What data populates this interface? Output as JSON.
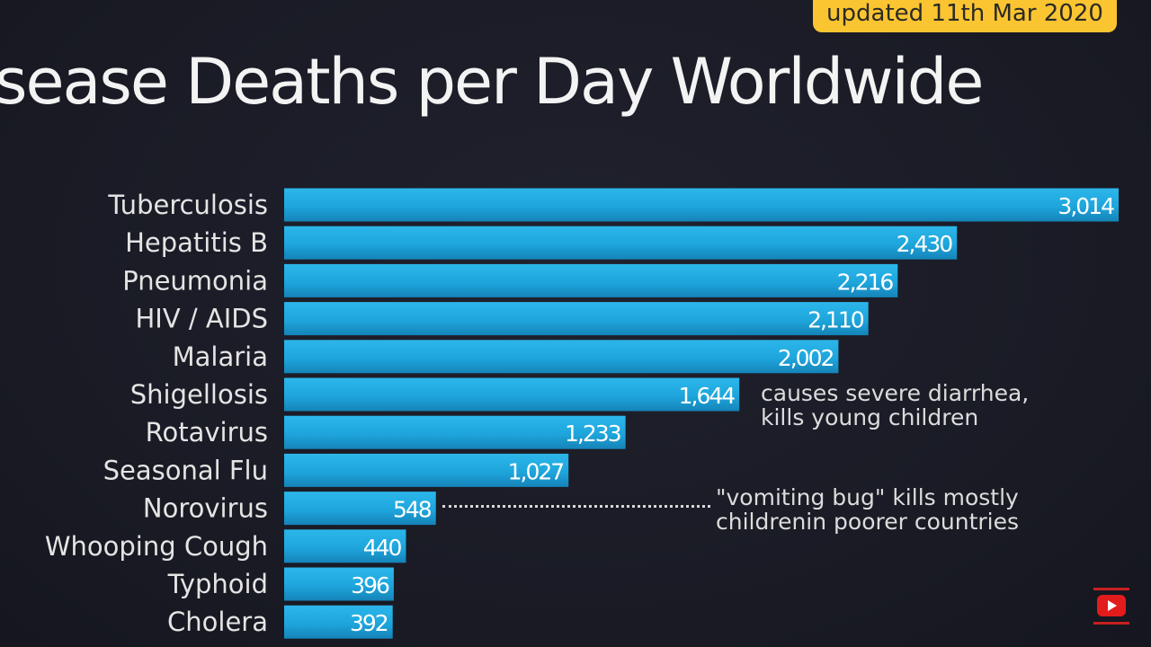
{
  "header": {
    "badge_text": "updated 11th Mar 2020"
  },
  "chart_data": {
    "type": "bar",
    "orientation": "horizontal",
    "title": "sease Deaths per Day Worldwide",
    "categories": [
      "Tuberculosis",
      "Hepatitis B",
      "Pneumonia",
      "HIV / AIDS",
      "Malaria",
      "Shigellosis",
      "Rotavirus",
      "Seasonal Flu",
      "Norovirus",
      "Whooping Cough",
      "Typhoid",
      "Cholera"
    ],
    "values": [
      3014,
      2430,
      2216,
      2110,
      2002,
      1644,
      1233,
      1027,
      548,
      440,
      396,
      392
    ],
    "value_labels": [
      "3,014",
      "2,430",
      "2,216",
      "2,110",
      "2,002",
      "1,644",
      "1,233",
      "1,027",
      "548",
      "440",
      "396",
      "392"
    ],
    "bar_color": "#1fa9df",
    "annotations": [
      {
        "category": "Shigellosis",
        "text": "causes severe diarrhea,\nkills young children"
      },
      {
        "category": "Norovirus",
        "text": "\"vomiting bug\" kills mostly\nchildrenin poorer countries"
      }
    ],
    "grid": false,
    "legend": "none"
  },
  "colors": {
    "background": "#1b1c27",
    "badge": "#fbc531",
    "title_text": "#f3f3f3",
    "bar": "#1fa9df"
  },
  "icons": {
    "watermark": "youtube-logo-icon"
  }
}
